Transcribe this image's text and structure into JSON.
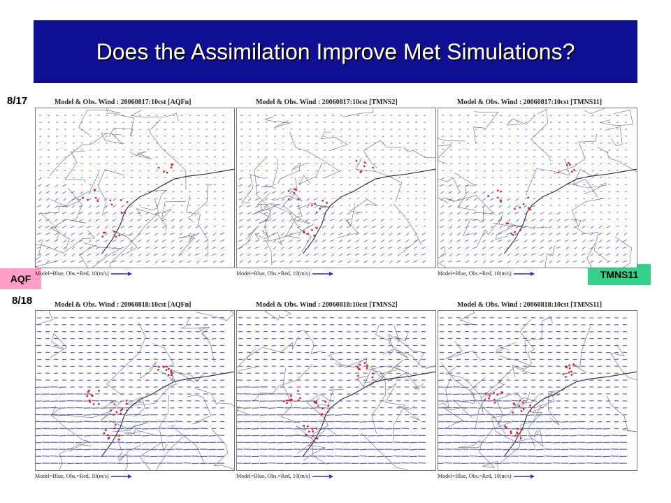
{
  "slide": {
    "title": "Does the Assimilation Improve Met Simulations?",
    "date_top": "8/17",
    "date_bottom": "8/18",
    "badge_left": "AQF",
    "badge_right": "TMNS11"
  },
  "panels": [
    {
      "title": "Model & Obs. Wind : 20060817:10cst [AQFn]",
      "footer": "Model=Blue, Obs.=Red, 10(m/s)"
    },
    {
      "title": "Model & Obs. Wind : 20060817:10cst [TMNS2]",
      "footer": "Model=Blue, Obs.=Red, 10(m/s)"
    },
    {
      "title": "Model & Obs. Wind : 20060817:10cst [TMNS11]",
      "footer": "Model=Blue, Obs.=Red, 10(m/s)"
    },
    {
      "title": "Model & Obs. Wind : 20060818:10cst [AQFn]",
      "footer": "Model=Blue, Obs.=Red, 10(m/s)"
    },
    {
      "title": "Model & Obs. Wind : 20060818:10cst [TMNS2]",
      "footer": "Model=Blue, Obs.=Red, 10(m/s)"
    },
    {
      "title": "Model & Obs. Wind : 20060818:10cst [TMNS11]",
      "footer": "Model=Blue, Obs.=Red, 10(m/s)"
    }
  ],
  "colors": {
    "title_bg": "#0f0f94",
    "model_wind": "#5a5fd6",
    "obs_wind": "#e02020",
    "aqf_badge": "#ff9fc8",
    "tmns11_badge": "#33d18a"
  }
}
